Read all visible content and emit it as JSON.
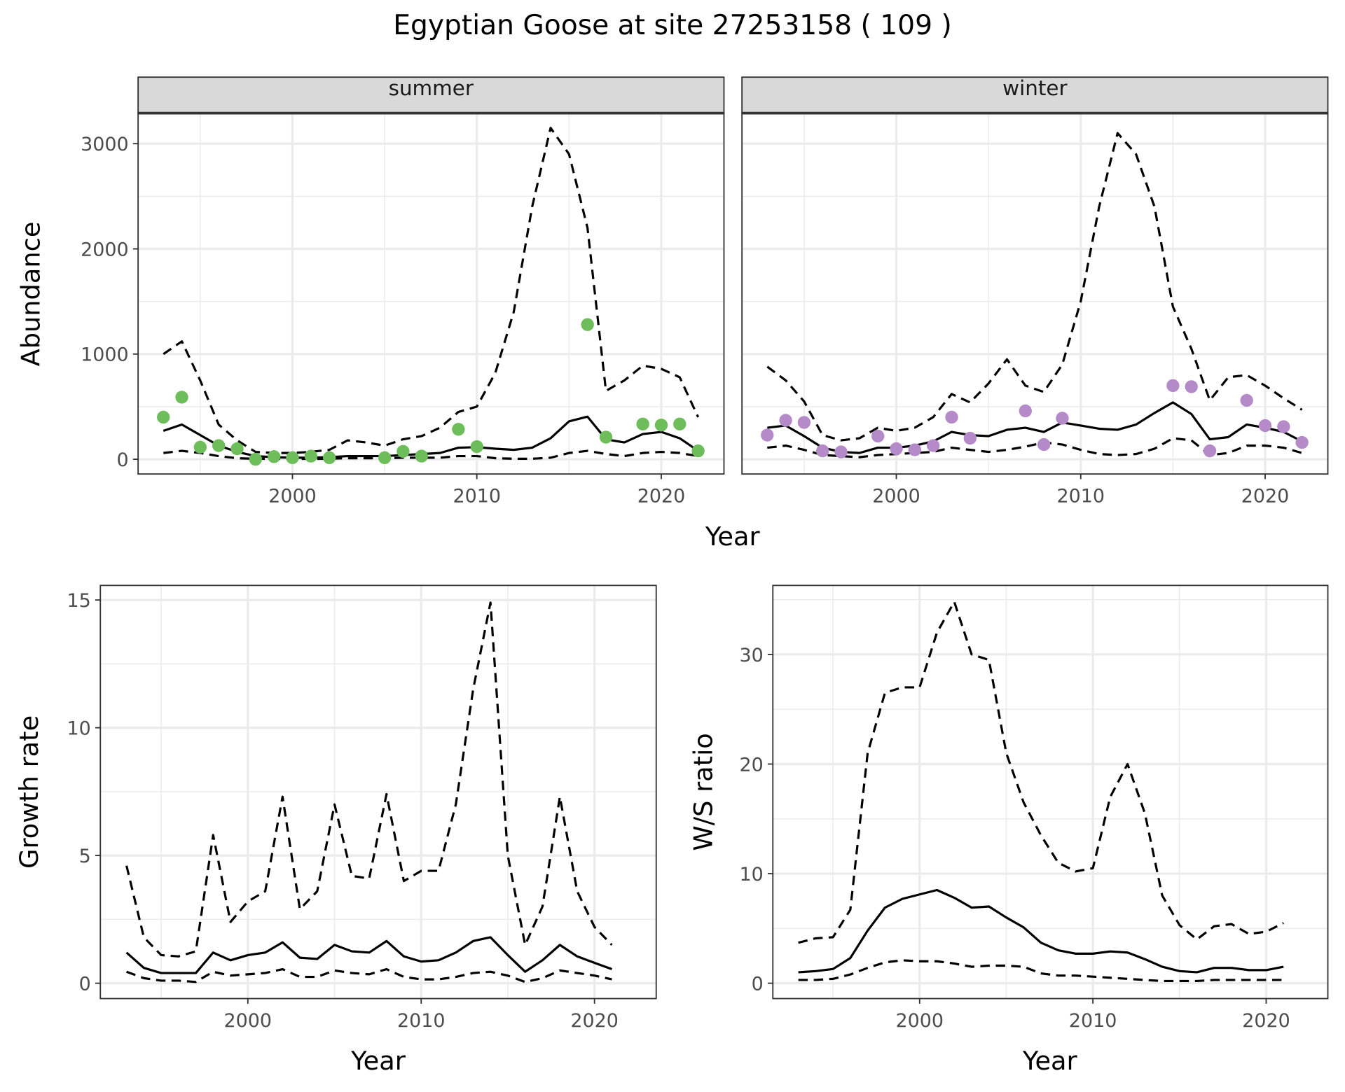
{
  "title": "Egyptian Goose at site 27253158 ( 109 )",
  "colors": {
    "summer": "#6dbd5b",
    "winter": "#b58ac9",
    "line": "#000000",
    "grid": "#ebebeb",
    "strip": "#d9d9d9"
  },
  "chart_data": [
    {
      "type": "line",
      "facet": "summer",
      "strip": "summer",
      "xlabel": "Year",
      "ylabel": "Abundance",
      "xlim": [
        1991.63,
        2023.4
      ],
      "ylim": [
        -140,
        3290
      ],
      "xticks": [
        2000,
        2010,
        2020
      ],
      "yticks": [
        0,
        1000,
        2000,
        3000
      ],
      "grid": true,
      "x": [
        1993,
        1994,
        1995,
        1996,
        1997,
        1998,
        1999,
        2000,
        2001,
        2002,
        2003,
        2004,
        2005,
        2006,
        2007,
        2008,
        2009,
        2010,
        2011,
        2012,
        2013,
        2014,
        2015,
        2016,
        2017,
        2018,
        2019,
        2020,
        2021,
        2022
      ],
      "series": [
        {
          "style": "solid",
          "values": [
            270,
            330,
            230,
            130,
            70,
            30,
            20,
            15,
            15,
            20,
            30,
            30,
            30,
            40,
            50,
            60,
            110,
            115,
            100,
            90,
            110,
            200,
            360,
            405,
            190,
            160,
            240,
            260,
            200,
            80
          ]
        },
        {
          "style": "dashed",
          "values": [
            1000,
            1120,
            750,
            330,
            180,
            70,
            60,
            60,
            70,
            90,
            180,
            160,
            130,
            190,
            220,
            300,
            450,
            500,
            820,
            1400,
            2400,
            3150,
            2900,
            2200,
            650,
            750,
            890,
            860,
            780,
            400
          ]
        },
        {
          "style": "dashed",
          "values": [
            60,
            80,
            60,
            30,
            10,
            5,
            5,
            3,
            3,
            5,
            10,
            10,
            10,
            15,
            15,
            15,
            30,
            30,
            10,
            5,
            5,
            15,
            60,
            80,
            50,
            30,
            60,
            70,
            60,
            30
          ]
        }
      ],
      "points": {
        "x": [
          1993,
          1994,
          1995,
          1996,
          1997,
          1998,
          1999,
          2000,
          2001,
          2002,
          2005,
          2006,
          2007,
          2009,
          2010,
          2016,
          2017,
          2019,
          2020,
          2021,
          2022
        ],
        "y": [
          400,
          590,
          115,
          130,
          100,
          0,
          25,
          15,
          30,
          15,
          15,
          75,
          30,
          285,
          120,
          1280,
          210,
          335,
          325,
          335,
          80
        ]
      }
    },
    {
      "type": "line",
      "facet": "winter",
      "strip": "winter",
      "xlabel": "",
      "ylabel": "",
      "xlim": [
        1991.63,
        2023.4
      ],
      "ylim": [
        -140,
        3290
      ],
      "xticks": [
        2000,
        2010,
        2020
      ],
      "yticks": [
        0,
        1000,
        2000,
        3000
      ],
      "grid": true,
      "x": [
        1993,
        1994,
        1995,
        1996,
        1997,
        1998,
        1999,
        2000,
        2001,
        2002,
        2003,
        2004,
        2005,
        2006,
        2007,
        2008,
        2009,
        2010,
        2011,
        2012,
        2013,
        2014,
        2015,
        2016,
        2017,
        2018,
        2019,
        2020,
        2021,
        2022
      ],
      "series": [
        {
          "style": "solid",
          "values": [
            300,
            320,
            220,
            110,
            70,
            60,
            110,
            110,
            130,
            170,
            260,
            230,
            220,
            280,
            300,
            260,
            350,
            320,
            290,
            280,
            330,
            440,
            540,
            430,
            190,
            210,
            330,
            300,
            260,
            170
          ]
        },
        {
          "style": "dashed",
          "values": [
            880,
            750,
            550,
            230,
            180,
            200,
            300,
            270,
            300,
            400,
            620,
            540,
            720,
            950,
            700,
            640,
            900,
            1500,
            2400,
            3100,
            2900,
            2400,
            1450,
            1050,
            560,
            780,
            800,
            700,
            580,
            470
          ]
        },
        {
          "style": "dashed",
          "values": [
            110,
            130,
            90,
            40,
            30,
            20,
            40,
            50,
            60,
            70,
            110,
            90,
            70,
            90,
            120,
            160,
            140,
            90,
            50,
            40,
            50,
            100,
            200,
            180,
            40,
            60,
            130,
            130,
            110,
            60
          ]
        }
      ],
      "points": {
        "x": [
          1993,
          1994,
          1995,
          1996,
          1997,
          1999,
          2000,
          2001,
          2002,
          2003,
          2004,
          2007,
          2008,
          2009,
          2015,
          2016,
          2017,
          2019,
          2020,
          2021,
          2022
        ],
        "y": [
          230,
          370,
          350,
          80,
          70,
          220,
          100,
          90,
          130,
          400,
          200,
          460,
          140,
          390,
          700,
          690,
          80,
          560,
          320,
          310,
          160
        ]
      }
    },
    {
      "type": "line",
      "xlabel": "Year",
      "ylabel": "Growth rate",
      "xlim": [
        1991.49,
        2023.56
      ],
      "ylim": [
        -0.6,
        15.57
      ],
      "xticks": [
        2000,
        2010,
        2020
      ],
      "yticks": [
        0,
        5,
        10,
        15
      ],
      "grid": true,
      "x": [
        1993,
        1994,
        1995,
        1996,
        1997,
        1998,
        1999,
        2000,
        2001,
        2002,
        2003,
        2004,
        2005,
        2006,
        2007,
        2008,
        2009,
        2010,
        2011,
        2012,
        2013,
        2014,
        2015,
        2016,
        2017,
        2018,
        2019,
        2020,
        2021
      ],
      "series": [
        {
          "style": "solid",
          "values": [
            1.2,
            0.6,
            0.4,
            0.4,
            0.4,
            1.2,
            0.9,
            1.1,
            1.2,
            1.6,
            1.0,
            0.95,
            1.5,
            1.25,
            1.2,
            1.65,
            1.05,
            0.85,
            0.9,
            1.2,
            1.65,
            1.8,
            1.1,
            0.45,
            0.9,
            1.5,
            1.05,
            0.8,
            0.55
          ]
        },
        {
          "style": "dashed",
          "values": [
            4.6,
            1.8,
            1.1,
            1.05,
            1.25,
            5.8,
            2.4,
            3.2,
            3.6,
            7.3,
            2.9,
            3.6,
            7.0,
            4.2,
            4.1,
            7.4,
            4.0,
            4.4,
            4.4,
            7.0,
            11.5,
            14.9,
            5.0,
            1.5,
            3.0,
            7.3,
            3.6,
            2.2,
            1.5
          ]
        },
        {
          "style": "dashed",
          "values": [
            0.45,
            0.2,
            0.1,
            0.1,
            0.05,
            0.45,
            0.3,
            0.35,
            0.4,
            0.55,
            0.25,
            0.25,
            0.5,
            0.4,
            0.35,
            0.55,
            0.25,
            0.15,
            0.15,
            0.25,
            0.4,
            0.45,
            0.3,
            0.05,
            0.2,
            0.5,
            0.4,
            0.3,
            0.15
          ]
        }
      ]
    },
    {
      "type": "line",
      "xlabel": "Year",
      "ylabel": "W/S ratio",
      "xlim": [
        1991.53,
        2023.56
      ],
      "ylim": [
        -1.4,
        36.3
      ],
      "xticks": [
        2000,
        2010,
        2020
      ],
      "yticks": [
        0,
        10,
        20,
        30
      ],
      "grid": true,
      "x": [
        1993,
        1994,
        1995,
        1996,
        1997,
        1998,
        1999,
        2000,
        2001,
        2002,
        2003,
        2004,
        2005,
        2006,
        2007,
        2008,
        2009,
        2010,
        2011,
        2012,
        2013,
        2014,
        2015,
        2016,
        2017,
        2018,
        2019,
        2020,
        2021
      ],
      "series": [
        {
          "style": "solid",
          "values": [
            1.0,
            1.1,
            1.3,
            2.3,
            4.8,
            6.9,
            7.7,
            8.1,
            8.5,
            7.8,
            6.9,
            7.0,
            6.0,
            5.1,
            3.7,
            3.0,
            2.7,
            2.7,
            2.9,
            2.8,
            2.2,
            1.5,
            1.1,
            1.0,
            1.4,
            1.4,
            1.2,
            1.2,
            1.5
          ]
        },
        {
          "style": "dashed",
          "values": [
            3.7,
            4.1,
            4.2,
            6.7,
            21,
            26.5,
            27,
            27,
            32,
            34.8,
            30,
            29.5,
            21,
            16.5,
            13.5,
            11,
            10.2,
            10.5,
            17,
            20,
            15.5,
            8,
            5.3,
            4,
            5.2,
            5.4,
            4.5,
            4.7,
            5.5
          ]
        },
        {
          "style": "dashed",
          "values": [
            0.3,
            0.3,
            0.4,
            0.8,
            1.4,
            1.9,
            2.1,
            2.0,
            2.0,
            1.8,
            1.5,
            1.6,
            1.6,
            1.5,
            0.9,
            0.7,
            0.7,
            0.6,
            0.5,
            0.4,
            0.3,
            0.2,
            0.2,
            0.2,
            0.3,
            0.3,
            0.3,
            0.3,
            0.3
          ]
        }
      ]
    }
  ]
}
